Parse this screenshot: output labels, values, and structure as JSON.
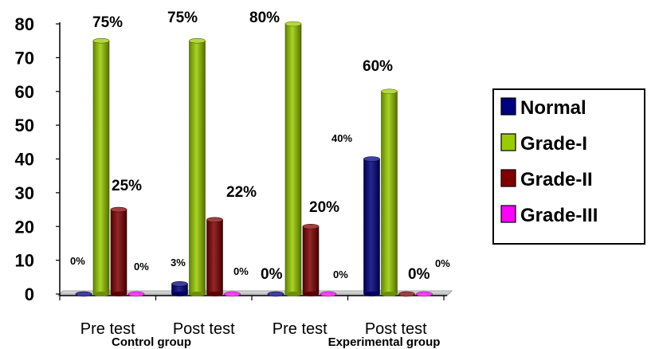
{
  "chart_data": {
    "type": "bar",
    "categories": [
      "Pre test",
      "Post test",
      "Pre test",
      "Post test"
    ],
    "groups": [
      {
        "label": "Control group"
      },
      {
        "label": "Experimental  group"
      }
    ],
    "ylim": [
      0,
      80
    ],
    "yticks": [
      0,
      10,
      20,
      30,
      40,
      50,
      60,
      70,
      80
    ],
    "grid": false,
    "legend_position": "right",
    "series": [
      {
        "name": "Normal",
        "color": "#000080",
        "values": [
          0,
          3,
          0,
          40
        ],
        "labels": [
          "0%",
          "3%",
          "0%",
          "40%"
        ]
      },
      {
        "name": "Grade-I",
        "color": "#99CC00",
        "values": [
          75,
          75,
          80,
          60
        ],
        "labels": [
          "75%",
          "75%",
          "80%",
          "60%"
        ]
      },
      {
        "name": "Grade-II",
        "color": "#800000",
        "values": [
          25,
          22,
          20,
          0
        ],
        "labels": [
          "25%",
          "22%",
          "20%",
          "0%"
        ]
      },
      {
        "name": "Grade-III",
        "color": "#FF00FF",
        "values": [
          0,
          0,
          0,
          0
        ],
        "labels": [
          "0%",
          "0%",
          "0%",
          "0%"
        ]
      }
    ]
  }
}
